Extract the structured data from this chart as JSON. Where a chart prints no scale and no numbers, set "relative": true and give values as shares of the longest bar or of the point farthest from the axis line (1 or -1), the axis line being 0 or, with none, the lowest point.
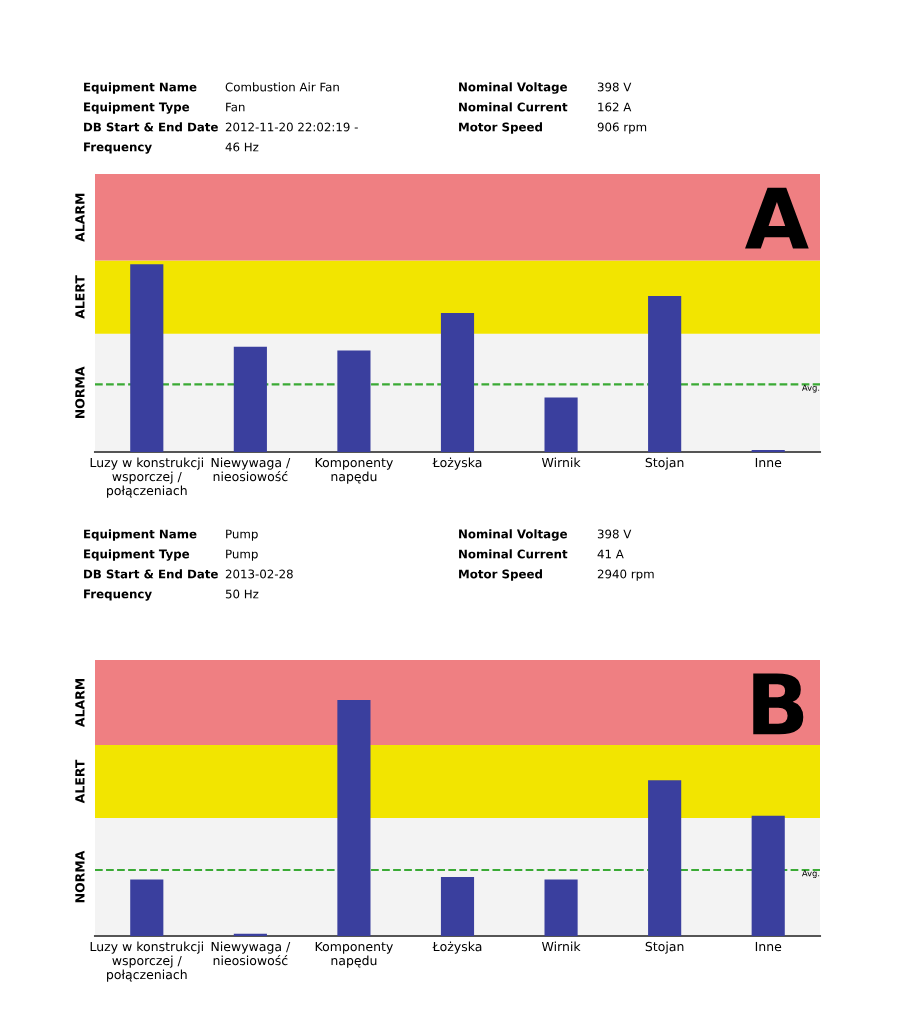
{
  "chart_data": [
    {
      "type": "bar",
      "title": "A",
      "relative": true,
      "color": "#3a3f9e",
      "categories": [
        "Luzy w konstrukcji\nwsporczej /\npołączeniach",
        "Niewywaga /\nnieosiowość",
        "Komponenty\nnapędu",
        "Łożyska",
        "Wirnik",
        "Stojan",
        "Inne"
      ],
      "values": [
        1,
        0.56,
        0.54,
        0.74,
        0.29,
        0.83,
        0.01
      ],
      "bands": [
        {
          "axis": "y",
          "from": 0,
          "to": 0.63,
          "label": "NORMA",
          "color": "#f3f3f3"
        },
        {
          "axis": "y",
          "from": 0.63,
          "to": 1.02,
          "label": "ALERT",
          "color": "#f2e500"
        },
        {
          "axis": "y",
          "from": 1.02,
          "to": 1.48,
          "label": "ALARM",
          "color": "#ef7f82"
        }
      ],
      "ref_lines": [
        {
          "axis": "y",
          "value": 0.36,
          "label": "Avg.",
          "color": "#3aaa35",
          "line_style": "dashed"
        }
      ],
      "annotations": [
        "Equipment Name",
        "Combustion Air Fan",
        "Equipment Type",
        "Fan",
        "DB Start & End Date",
        "2012-11-20 22:02:19 -",
        "Frequency",
        "46 Hz",
        "Nominal Voltage",
        "398 V",
        "Nominal Current",
        "162 A",
        "Motor Speed",
        "906 rpm"
      ],
      "grid": false,
      "legend": false
    },
    {
      "type": "bar",
      "title": "B",
      "relative": true,
      "color": "#3a3f9e",
      "categories": [
        "Luzy w konstrukcji\nwsporczej /\npołączeniach",
        "Niewywaga /\nnieosiowość",
        "Komponenty\nnapędu",
        "Łożyska",
        "Wirnik",
        "Stojan",
        "Inne"
      ],
      "values": [
        0.24,
        0.01,
        1,
        0.25,
        0.24,
        0.66,
        0.51
      ],
      "bands": [
        {
          "axis": "y",
          "from": 0,
          "to": 0.5,
          "label": "NORMA",
          "color": "#f3f3f3"
        },
        {
          "axis": "y",
          "from": 0.5,
          "to": 0.81,
          "label": "ALERT",
          "color": "#f2e500"
        },
        {
          "axis": "y",
          "from": 0.81,
          "to": 1.17,
          "label": "ALARM",
          "color": "#ef7f82"
        }
      ],
      "ref_lines": [
        {
          "axis": "y",
          "value": 0.28,
          "label": "Avg.",
          "color": "#3aaa35",
          "line_style": "dashed"
        }
      ],
      "annotations": [
        "Equipment Name",
        "Pump",
        "Equipment Type",
        "Pump",
        "DB Start & End Date",
        "2013-02-28",
        "Frequency",
        "50 Hz",
        "Nominal Voltage",
        "398 V",
        "Nominal Current",
        "41 A",
        "Motor Speed",
        "2940 rpm"
      ],
      "grid": false,
      "legend": false
    }
  ]
}
